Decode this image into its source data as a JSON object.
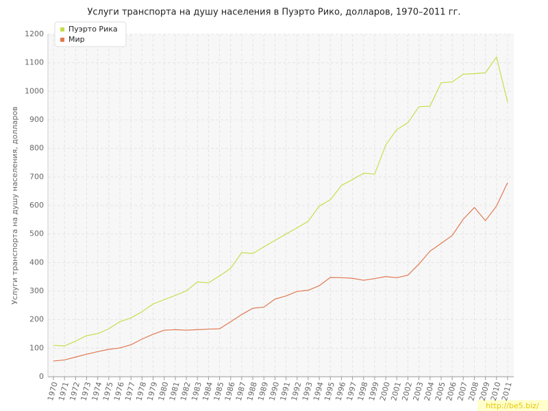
{
  "chart_data": {
    "type": "line",
    "title": "Услуги транспорта на душу населения в Пуэрто Рико, долларов, 1970–2011 гг.",
    "y_label": "Услуги транспорта на душу населения, долларов",
    "watermark": "http://be5.biz/",
    "categories": [
      "1970",
      "1971",
      "1972",
      "1973",
      "1974",
      "1975",
      "1976",
      "1977",
      "1978",
      "1979",
      "1980",
      "1981",
      "1982",
      "1983",
      "1984",
      "1985",
      "1986",
      "1987",
      "1988",
      "1989",
      "1990",
      "1991",
      "1992",
      "1993",
      "1994",
      "1995",
      "1996",
      "1997",
      "1998",
      "1999",
      "2000",
      "2001",
      "2002",
      "2003",
      "2004",
      "2005",
      "2006",
      "2007",
      "2008",
      "2009",
      "2010",
      "2011"
    ],
    "series": [
      {
        "name": "Пуэрто Рика",
        "color": "#c5de4a",
        "values": [
          110,
          108,
          125,
          144,
          151,
          168,
          193,
          206,
          228,
          255,
          270,
          285,
          301,
          332,
          329,
          353,
          380,
          435,
          432,
          455,
          478,
          500,
          522,
          545,
          598,
          620,
          670,
          691,
          713,
          710,
          812,
          866,
          890,
          946,
          948,
          1030,
          1033,
          1060,
          1062,
          1065,
          1120,
          962
        ]
      },
      {
        "name": "Мир",
        "color": "#e0774e",
        "values": [
          55,
          59,
          69,
          79,
          88,
          96,
          101,
          112,
          132,
          149,
          163,
          165,
          163,
          165,
          167,
          168,
          193,
          218,
          240,
          244,
          272,
          283,
          299,
          303,
          319,
          348,
          347,
          345,
          338,
          344,
          351,
          347,
          356,
          395,
          440,
          467,
          495,
          552,
          593,
          547,
          598,
          680
        ]
      }
    ],
    "ylim": [
      0,
      1200
    ],
    "yticks": [
      0,
      100,
      200,
      300,
      400,
      500,
      600,
      700,
      800,
      900,
      1000,
      1100,
      1200
    ],
    "grid": true,
    "legend": "top-left"
  }
}
